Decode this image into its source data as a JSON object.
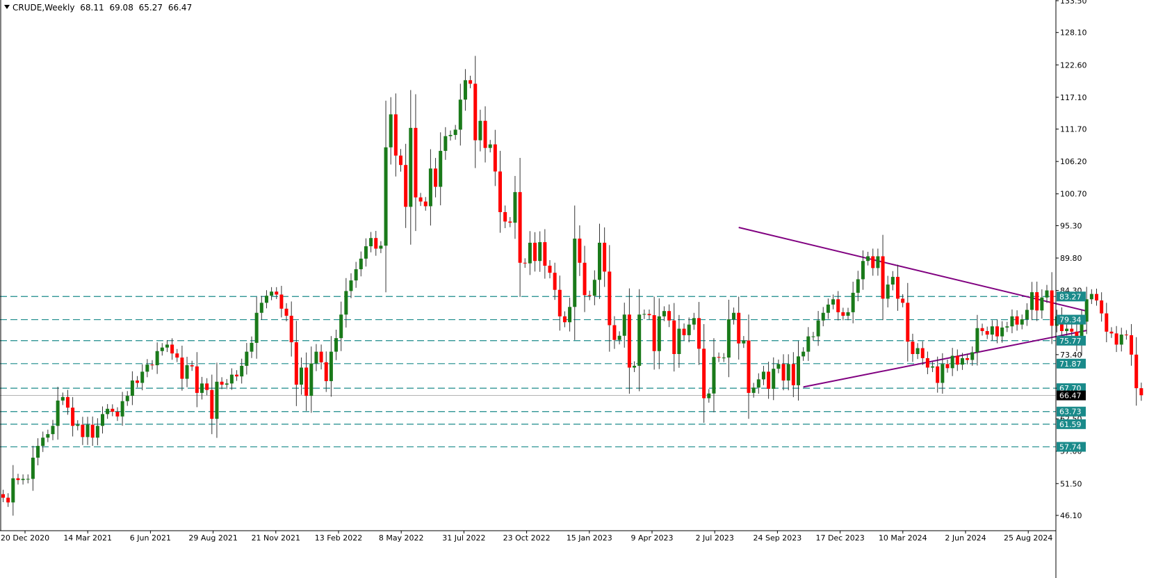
{
  "header": {
    "symbol": "CRUDE,Weekly",
    "open": "68.11",
    "high": "69.08",
    "low": "65.27",
    "close": "66.47"
  },
  "colors": {
    "bull": "#1a7a1a",
    "bear": "#ff0000",
    "wick": "#333333",
    "level_line": "#1a8a8a",
    "level_label_bg": "#1a8a8a",
    "current_label_bg": "#000000",
    "trendline": "#800080"
  },
  "chart_data": {
    "type": "candlestick",
    "ylim": [
      43.5,
      133.5
    ],
    "price_ticks": [
      "133.50",
      "128.10",
      "122.60",
      "117.10",
      "111.70",
      "106.20",
      "100.70",
      "95.30",
      "89.80",
      "84.30",
      "73.40",
      "67.70",
      "62.50",
      "57.00",
      "51.50",
      "46.10"
    ],
    "time_labels": [
      "20 Dec 2020",
      "14 Mar 2021",
      "6 Jun 2021",
      "29 Aug 2021",
      "21 Nov 2021",
      "13 Feb 2022",
      "8 May 2022",
      "31 Jul 2022",
      "23 Oct 2022",
      "15 Jan 2023",
      "9 Apr 2023",
      "2 Jul 2023",
      "24 Sep 2023",
      "17 Dec 2023",
      "10 Mar 2024",
      "2 Jun 2024",
      "25 Aug 2024"
    ],
    "levels": [
      "83.27",
      "79.34",
      "75.77",
      "71.87",
      "67.70",
      "63.73",
      "61.59",
      "57.74"
    ],
    "current_price": "66.47",
    "trendlines": [
      {
        "from": {
          "index": 148,
          "price": 95.0
        },
        "to": {
          "index": 218,
          "price": 80.8
        }
      },
      {
        "from": {
          "index": 161,
          "price": 67.9
        },
        "to": {
          "index": 218,
          "price": 77.5
        }
      }
    ],
    "closes": [
      49.1,
      48.3,
      52.4,
      52.1,
      52.3,
      52.3,
      55.9,
      57.9,
      59.3,
      59.9,
      61.3,
      65.6,
      66.2,
      64.4,
      61.3,
      61.5,
      59.4,
      61.5,
      59.3,
      61.3,
      63.3,
      64.2,
      63.7,
      62.9,
      65.5,
      66.4,
      69.0,
      68.6,
      70.5,
      71.7,
      71.6,
      74.0,
      74.6,
      75.1,
      73.6,
      72.9,
      69.3,
      71.6,
      71.4,
      66.9,
      68.5,
      67.4,
      62.5,
      68.8,
      68.3,
      68.5,
      70.0,
      69.7,
      71.5,
      73.9,
      75.4,
      80.5,
      82.2,
      83.4,
      84.1,
      83.6,
      81.2,
      80.0,
      75.5,
      68.3,
      71.2,
      66.4,
      71.9,
      73.9,
      72.1,
      68.9,
      73.9,
      76.2,
      80.2,
      84.2,
      86.0,
      87.9,
      89.7,
      91.8,
      93.2,
      91.4,
      91.9,
      108.6,
      114.2,
      107.2,
      105.6,
      98.5,
      111.9,
      100.1,
      99.4,
      98.6,
      105.0,
      101.9,
      108.0,
      110.5,
      110.7,
      111.6,
      116.7,
      120.0,
      119.4,
      109.8,
      113.1,
      108.5,
      109.1,
      104.5,
      97.6,
      96.0,
      95.8,
      101.0,
      89.0,
      88.9,
      92.4,
      89.3,
      92.5,
      88.5,
      87.3,
      84.4,
      79.9,
      78.9,
      81.5,
      93.1,
      89.0,
      83.5,
      83.4,
      86.1,
      92.4,
      87.5,
      78.4,
      75.9,
      76.6,
      80.2,
      71.2,
      71.5,
      80.2,
      80.3,
      80.1,
      74.0,
      79.9,
      80.8,
      79.2,
      73.5,
      77.8,
      76.7,
      78.5,
      79.6,
      74.4,
      66.0,
      66.8,
      73.0,
      72.9,
      72.9,
      79.4,
      80.5,
      75.3,
      75.8,
      66.9,
      67.8,
      69.2,
      70.5,
      67.6,
      71.0,
      71.8,
      69.0,
      71.8,
      68.2,
      73.1,
      73.9,
      76.5,
      76.5,
      79.2,
      80.5,
      81.9,
      82.8,
      80.6,
      80.0,
      80.6,
      83.9,
      86.2,
      89.3,
      90.1,
      88.1,
      90.1,
      82.9,
      85.3,
      86.6,
      82.9,
      82.2,
      75.6,
      73.5,
      74.5,
      72.8,
      71.2,
      71.4,
      68.6,
      71.8,
      71.1,
      73.2,
      71.7,
      72.8,
      72.5,
      73.8,
      77.9,
      77.4,
      76.8,
      78.2,
      76.5,
      78.0,
      78.2,
      79.9,
      78.5,
      79.4,
      81.0,
      84.0,
      80.9,
      83.1,
      84.3,
      78.3,
      79.9,
      77.4,
      77.8,
      77.3,
      75.3,
      79.0,
      82.8,
      83.7,
      82.6,
      80.4,
      77.3,
      77.0,
      75.1,
      76.8,
      76.7,
      73.4,
      67.7,
      66.5
    ]
  }
}
